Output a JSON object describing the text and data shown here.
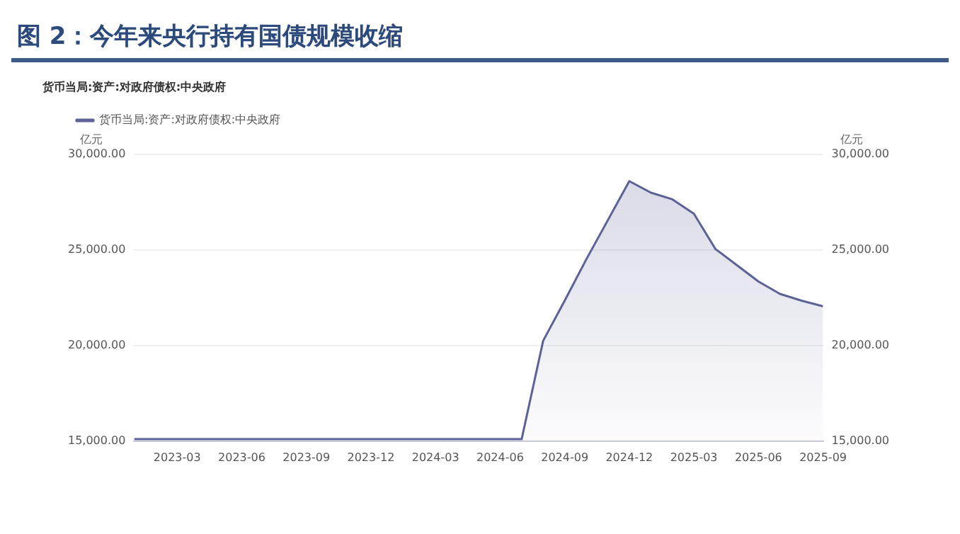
{
  "chart_data": {
    "type": "area",
    "title": "图 2：今年来央行持有国债规模收缩",
    "subtitle": "货币当局:资产:对政府债权:中央政府",
    "ylabel": "亿元",
    "y2label": "亿元",
    "x": [
      "2023-01",
      "2023-02",
      "2023-03",
      "2023-04",
      "2023-05",
      "2023-06",
      "2023-07",
      "2023-08",
      "2023-09",
      "2023-10",
      "2023-11",
      "2023-12",
      "2024-01",
      "2024-02",
      "2024-03",
      "2024-04",
      "2024-05",
      "2024-06",
      "2024-07",
      "2024-08",
      "2024-09",
      "2024-10",
      "2024-11",
      "2024-12",
      "2025-01",
      "2025-02",
      "2025-03",
      "2025-04",
      "2025-05",
      "2025-06",
      "2025-07",
      "2025-08",
      "2025-09"
    ],
    "series": [
      {
        "name": "货币当局:资产:对政府债权:中央政府",
        "color": "#5c6296",
        "values": [
          15100,
          15100,
          15100,
          15100,
          15100,
          15100,
          15100,
          15100,
          15100,
          15100,
          15100,
          15100,
          15100,
          15100,
          15100,
          15100,
          15100,
          15100,
          15100,
          20250,
          22350,
          24500,
          26550,
          28600,
          28000,
          27650,
          26900,
          25050,
          24200,
          23350,
          22700,
          22350,
          22050
        ]
      }
    ],
    "xlim": [
      "2023-01",
      "2025-09"
    ],
    "xticks": [
      "2023-03",
      "2023-06",
      "2023-09",
      "2023-12",
      "2024-03",
      "2024-06",
      "2024-09",
      "2024-12",
      "2025-03",
      "2025-06",
      "2025-09"
    ],
    "ylim": [
      15000,
      30000
    ],
    "yticks": [
      {
        "value": 15000,
        "label": "15,000.00"
      },
      {
        "value": 20000,
        "label": "20,000.00"
      },
      {
        "value": 25000,
        "label": "25,000.00"
      },
      {
        "value": 30000,
        "label": "30,000.00"
      }
    ],
    "y2lim": [
      15000,
      30000
    ],
    "y2ticks": [
      {
        "value": 15000,
        "label": "15,000.00"
      },
      {
        "value": 20000,
        "label": "20,000.00"
      },
      {
        "value": 25000,
        "label": "25,000.00"
      },
      {
        "value": 30000,
        "label": "30,000.00"
      }
    ],
    "grid": "y",
    "legend": "top left",
    "marker": "none",
    "line_style": "solid"
  }
}
